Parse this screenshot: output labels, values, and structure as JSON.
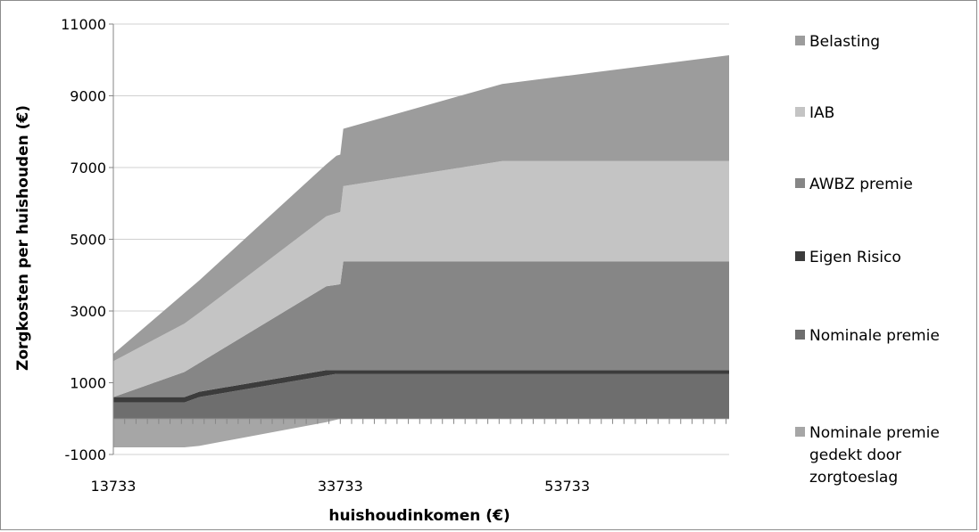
{
  "chart_data": {
    "type": "area",
    "stacked": true,
    "title": "",
    "xlabel": "huishoudinkomen (€)",
    "ylabel": "Zorgkosten per huishouden (€)",
    "xlim": [
      13733,
      68000
    ],
    "ylim": [
      -1000,
      11000
    ],
    "x_ticks": [
      13733,
      33733,
      53733
    ],
    "y_ticks": [
      -1000,
      1000,
      3000,
      5000,
      7000,
      9000,
      11000
    ],
    "grid": "horizontal",
    "legend_position": "right",
    "x": [
      13733,
      20000,
      21300,
      32500,
      33400,
      33733,
      34000,
      48000,
      68000
    ],
    "negative_series": {
      "name": "Nominale premie gedekt door zorgtoeslag",
      "color": "#a6a6a6",
      "values": [
        -800,
        -800,
        -760,
        -100,
        -30,
        0,
        0,
        0,
        0
      ]
    },
    "series": [
      {
        "name": "Nominale premie",
        "color": "#6e6e6e",
        "values": [
          450,
          450,
          600,
          1200,
          1250,
          1250,
          1250,
          1250,
          1250
        ]
      },
      {
        "name": "Eigen Risico",
        "color": "#3c3c3c",
        "values": [
          150,
          150,
          150,
          150,
          100,
          100,
          100,
          100,
          100
        ]
      },
      {
        "name": "AWBZ premie",
        "color": "#868686",
        "values": [
          0,
          700,
          800,
          2340,
          2380,
          2400,
          3030,
          3030,
          3030
        ]
      },
      {
        "name": "IAB",
        "color": "#c4c4c4",
        "values": [
          1000,
          1350,
          1400,
          1950,
          2000,
          2010,
          2100,
          2800,
          2800
        ]
      },
      {
        "name": "Belasting",
        "color": "#9c9c9c",
        "values": [
          200,
          850,
          900,
          1450,
          1600,
          1600,
          1600,
          2150,
          2950
        ]
      }
    ],
    "legend": [
      "Belasting",
      "IAB",
      "AWBZ premie",
      "Eigen Risico",
      "Nominale premie",
      "Nominale premie gedekt door zorgtoeslag"
    ]
  }
}
